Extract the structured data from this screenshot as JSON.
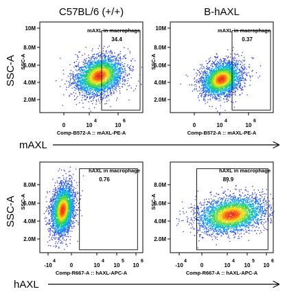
{
  "figure": {
    "col_titles": [
      "C57BL/6 (+/+)",
      "B-hAXL"
    ],
    "row_labels": [
      "SSC-A",
      "SSC-A"
    ],
    "row_markers": [
      "mAXL",
      "hAXL"
    ]
  },
  "chart_data": [
    {
      "type": "scatter",
      "title": "",
      "gate_label": "mAXL in macrophage",
      "gate_value": "34.4",
      "ylabel": "SSC-A",
      "xlabel": "Comp-B572-A :: mAXL-PE-A",
      "y_ticks": [
        "10M",
        "8.0M",
        "6.0M",
        "4.0M",
        "2.0M"
      ],
      "x_ticks": [
        {
          "base": "0",
          "exp": ""
        },
        {
          "base": "10",
          "exp": "4"
        },
        {
          "base": "10",
          "exp": "6"
        }
      ],
      "xlim": [
        -1,
        6.5
      ],
      "ylim": [
        0,
        10.5
      ],
      "gate": {
        "x": [
          3.5,
          6.3
        ],
        "y": [
          0.3,
          9.5
        ]
      },
      "population": {
        "cx": 3.3,
        "cy": 4.3,
        "sx": 0.9,
        "sy": 1.1,
        "n": 3200
      }
    },
    {
      "type": "scatter",
      "title": "",
      "gate_label": "mAXL in macrophage",
      "gate_value": "0.37",
      "ylabel": "SSC-A",
      "xlabel": "Comp-B572-A :: mAXL-PE-A",
      "y_ticks": [
        "10M",
        "8.0M",
        "6.0M",
        "4.0M",
        "2.0M"
      ],
      "x_ticks": [
        {
          "base": "0",
          "exp": ""
        },
        {
          "base": "10",
          "exp": "4"
        },
        {
          "base": "10",
          "exp": "6"
        }
      ],
      "xlim": [
        -1,
        6.5
      ],
      "ylim": [
        0,
        10.5
      ],
      "gate": {
        "x": [
          3.5,
          6.3
        ],
        "y": [
          0.3,
          9.5
        ]
      },
      "population": {
        "cx": 2.7,
        "cy": 3.9,
        "sx": 0.75,
        "sy": 1.0,
        "n": 3000
      }
    },
    {
      "type": "scatter",
      "title": "",
      "gate_label": "hAXL in macrophage",
      "gate_value": "0.76",
      "ylabel": "SSC-A",
      "xlabel": "Comp-R667-A :: hAXL-APC-A",
      "y_ticks": [
        "8.0M",
        "6.0M",
        "4.0M",
        "2.0M"
      ],
      "x_ticks": [
        {
          "base": "-10",
          "exp": "4"
        },
        {
          "base": "0",
          "exp": ""
        },
        {
          "base": "10",
          "exp": "4"
        },
        {
          "base": "10",
          "exp": "5"
        },
        {
          "base": "10",
          "exp": "6"
        }
      ],
      "xlim": [
        -1.5,
        6.3
      ],
      "ylim": [
        0,
        9.5
      ],
      "gate": {
        "x": [
          1.5,
          5.9
        ],
        "y": [
          0.3,
          8.8
        ]
      },
      "population": {
        "cx": 0.2,
        "cy": 4.5,
        "sx": 0.45,
        "sy": 1.3,
        "n": 3000
      }
    },
    {
      "type": "scatter",
      "title": "",
      "gate_label": "hAXL in macrophage",
      "gate_value": "89.9",
      "ylabel": "SSC-A",
      "xlabel": "Comp-R667-A :: hAXL-APC-A",
      "y_ticks": [
        "8.0M",
        "6.0M",
        "4.0M",
        "2.0M"
      ],
      "x_ticks": [
        {
          "base": "-10",
          "exp": "4"
        },
        {
          "base": "0",
          "exp": ""
        },
        {
          "base": "10",
          "exp": "4"
        },
        {
          "base": "10",
          "exp": "5"
        },
        {
          "base": "10",
          "exp": "6"
        }
      ],
      "xlim": [
        -1.5,
        6.3
      ],
      "ylim": [
        0,
        9.5
      ],
      "gate": {
        "x": [
          0.5,
          5.9
        ],
        "y": [
          0.3,
          8.8
        ]
      },
      "population": {
        "cx": 3.1,
        "cy": 4.0,
        "sx": 1.3,
        "sy": 0.95,
        "n": 3400
      }
    }
  ]
}
